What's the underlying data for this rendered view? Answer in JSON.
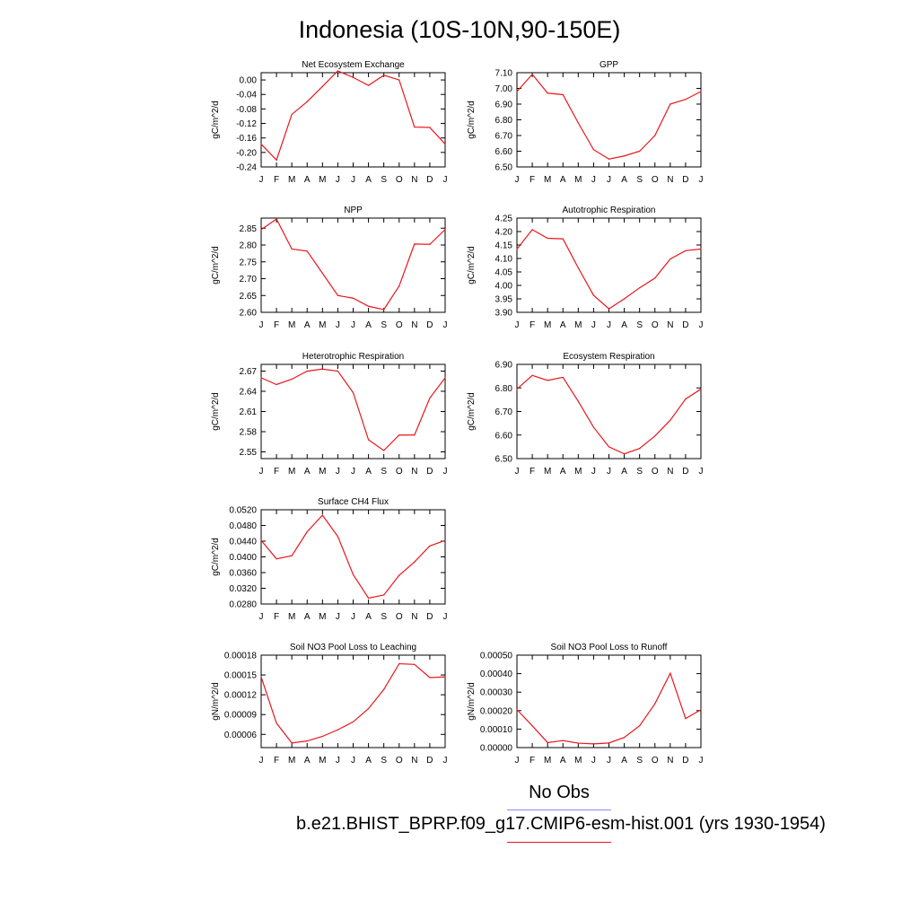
{
  "figure": {
    "title": "Indonesia (10S-10N,90-150E)",
    "months": [
      "J",
      "F",
      "M",
      "A",
      "M",
      "J",
      "J",
      "A",
      "S",
      "O",
      "N",
      "D",
      "J"
    ],
    "line_color": "#e8171c",
    "obs_color": "#8a8aff"
  },
  "legend": {
    "obs_label": "No Obs",
    "model_label": "b.e21.BHIST_BPRP.f09_g17.CMIP6-esm-hist.001 (yrs 1930-1954)"
  },
  "chart_data": [
    {
      "type": "line",
      "title": "Net Ecosystem Exchange",
      "ylabel": "gC/m^2/d",
      "ylim": [
        -0.24,
        0.02
      ],
      "yticks": [
        "0.00",
        "-0.04",
        "-0.08",
        "-0.12",
        "-0.16",
        "-0.20",
        "-0.24"
      ],
      "ytick_values": [
        0.0,
        -0.04,
        -0.08,
        -0.12,
        -0.16,
        -0.2,
        -0.24
      ],
      "x": [
        "J",
        "F",
        "M",
        "A",
        "M",
        "J",
        "J",
        "A",
        "S",
        "O",
        "N",
        "D",
        "J"
      ],
      "values": [
        -0.177,
        -0.221,
        -0.095,
        -0.06,
        -0.018,
        0.025,
        0.007,
        -0.015,
        0.013,
        0.0,
        -0.13,
        -0.131,
        -0.177
      ]
    },
    {
      "type": "line",
      "title": "GPP",
      "ylabel": "gC/m^2/d",
      "ylim": [
        6.5,
        7.1
      ],
      "yticks": [
        "7.10",
        "7.00",
        "6.90",
        "6.80",
        "6.70",
        "6.60",
        "6.50"
      ],
      "ytick_values": [
        7.1,
        7.0,
        6.9,
        6.8,
        6.7,
        6.6,
        6.5
      ],
      "x": [
        "J",
        "F",
        "M",
        "A",
        "M",
        "J",
        "J",
        "A",
        "S",
        "O",
        "N",
        "D",
        "J"
      ],
      "values": [
        6.98,
        7.09,
        6.97,
        6.96,
        6.78,
        6.61,
        6.55,
        6.57,
        6.6,
        6.7,
        6.9,
        6.93,
        6.98
      ]
    },
    {
      "type": "line",
      "title": "NPP",
      "ylabel": "gC/m^2/d",
      "ylim": [
        2.6,
        2.88
      ],
      "yticks": [
        "2.85",
        "2.80",
        "2.75",
        "2.70",
        "2.65",
        "2.60"
      ],
      "ytick_values": [
        2.85,
        2.8,
        2.75,
        2.7,
        2.65,
        2.6
      ],
      "x": [
        "J",
        "F",
        "M",
        "A",
        "M",
        "J",
        "J",
        "A",
        "S",
        "O",
        "N",
        "D",
        "J"
      ],
      "values": [
        2.846,
        2.877,
        2.788,
        2.782,
        2.716,
        2.65,
        2.642,
        2.618,
        2.608,
        2.678,
        2.803,
        2.802,
        2.846
      ]
    },
    {
      "type": "line",
      "title": "Autotrophic Respiration",
      "ylabel": "gC/m^2/d",
      "ylim": [
        3.9,
        4.25
      ],
      "yticks": [
        "4.25",
        "4.20",
        "4.15",
        "4.10",
        "4.05",
        "4.00",
        "3.95",
        "3.90"
      ],
      "ytick_values": [
        4.25,
        4.2,
        4.15,
        4.1,
        4.05,
        4.0,
        3.95,
        3.9
      ],
      "x": [
        "J",
        "F",
        "M",
        "A",
        "M",
        "J",
        "J",
        "A",
        "S",
        "O",
        "N",
        "D",
        "J"
      ],
      "values": [
        4.135,
        4.207,
        4.175,
        4.173,
        4.065,
        3.963,
        3.913,
        3.95,
        3.991,
        4.027,
        4.098,
        4.129,
        4.135
      ]
    },
    {
      "type": "line",
      "title": "Heterotrophic Respiration",
      "ylabel": "gC/m^2/d",
      "ylim": [
        2.54,
        2.68
      ],
      "yticks": [
        "2.67",
        "2.64",
        "2.61",
        "2.58",
        "2.55"
      ],
      "ytick_values": [
        2.67,
        2.64,
        2.61,
        2.58,
        2.55
      ],
      "x": [
        "J",
        "F",
        "M",
        "A",
        "M",
        "J",
        "J",
        "A",
        "S",
        "O",
        "N",
        "D",
        "J"
      ],
      "values": [
        2.66,
        2.65,
        2.658,
        2.67,
        2.673,
        2.67,
        2.638,
        2.568,
        2.552,
        2.575,
        2.575,
        2.63,
        2.66
      ]
    },
    {
      "type": "line",
      "title": "Ecosystem Respiration",
      "ylabel": "gC/m^2/d",
      "ylim": [
        6.5,
        6.9
      ],
      "yticks": [
        "6.90",
        "6.80",
        "6.70",
        "6.60",
        "6.50"
      ],
      "ytick_values": [
        6.9,
        6.8,
        6.7,
        6.6,
        6.5
      ],
      "x": [
        "J",
        "F",
        "M",
        "A",
        "M",
        "J",
        "J",
        "A",
        "S",
        "O",
        "N",
        "D",
        "J"
      ],
      "values": [
        6.795,
        6.853,
        6.832,
        6.845,
        6.743,
        6.633,
        6.55,
        6.52,
        6.543,
        6.596,
        6.663,
        6.753,
        6.795
      ]
    },
    {
      "type": "line",
      "title": "Surface CH4 Flux",
      "ylabel": "gC/m^2/d",
      "ylim": [
        0.028,
        0.052
      ],
      "yticks": [
        "0.0520",
        "0.0480",
        "0.0440",
        "0.0400",
        "0.0360",
        "0.0320",
        "0.0280"
      ],
      "ytick_values": [
        0.052,
        0.048,
        0.044,
        0.04,
        0.036,
        0.032,
        0.028
      ],
      "x": [
        "J",
        "F",
        "M",
        "A",
        "M",
        "J",
        "J",
        "A",
        "S",
        "O",
        "N",
        "D",
        "J"
      ],
      "values": [
        0.0442,
        0.0395,
        0.0403,
        0.0464,
        0.0506,
        0.0452,
        0.0355,
        0.0295,
        0.0303,
        0.0353,
        0.0387,
        0.0428,
        0.0442
      ]
    },
    {
      "type": "line",
      "title": "Soil NO3 Pool Loss to Leaching",
      "ylabel": "gN/m^2/d",
      "ylim": [
        4e-05,
        0.00018
      ],
      "yticks": [
        "0.00018",
        "0.00015",
        "0.00012",
        "0.00009",
        "0.00006"
      ],
      "ytick_values": [
        0.00018,
        0.00015,
        0.00012,
        9e-05,
        6e-05
      ],
      "x": [
        "J",
        "F",
        "M",
        "A",
        "M",
        "J",
        "J",
        "A",
        "S",
        "O",
        "N",
        "D",
        "J"
      ],
      "values": [
        0.000147,
        7.7e-05,
        4.7e-05,
        5e-05,
        5.7e-05,
        6.7e-05,
        7.9e-05,
        9.9e-05,
        0.000128,
        0.000167,
        0.000166,
        0.000146,
        0.000147
      ]
    },
    {
      "type": "line",
      "title": "Soil NO3 Pool Loss to Runoff",
      "ylabel": "gN/m^2/d",
      "ylim": [
        0,
        0.0005
      ],
      "yticks": [
        "0.00050",
        "0.00040",
        "0.00030",
        "0.00020",
        "0.00010",
        "0.00000"
      ],
      "ytick_values": [
        0.0005,
        0.0004,
        0.0003,
        0.0002,
        0.0001,
        0.0
      ],
      "x": [
        "J",
        "F",
        "M",
        "A",
        "M",
        "J",
        "J",
        "A",
        "S",
        "O",
        "N",
        "D",
        "J"
      ],
      "values": [
        0.000205,
        0.000118,
        2.7e-05,
        3.8e-05,
        2.4e-05,
        2e-05,
        2.5e-05,
        5.5e-05,
        0.000118,
        0.000237,
        0.000402,
        0.000157,
        0.000205
      ]
    }
  ]
}
